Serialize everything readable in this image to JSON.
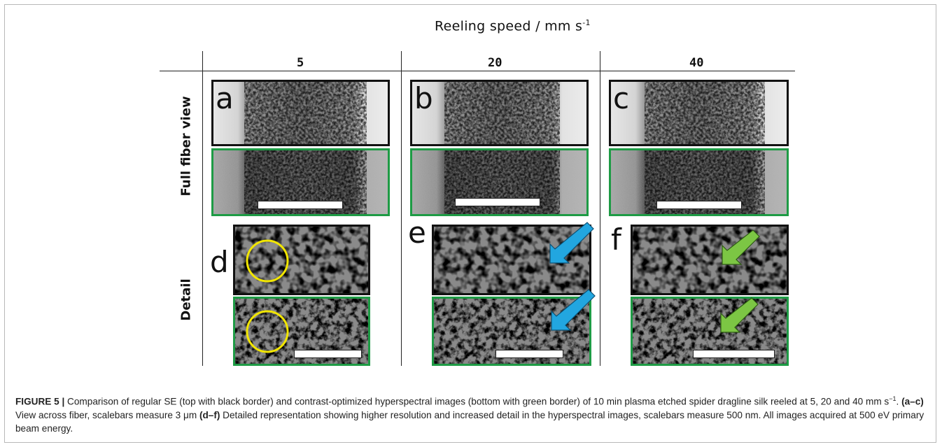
{
  "header": {
    "title": "Reeling speed / mm s",
    "title_sup": "-1"
  },
  "columns": [
    "5",
    "20",
    "40"
  ],
  "rows": [
    "Full fiber view",
    "Detail"
  ],
  "panel_letters": [
    "a",
    "b",
    "c",
    "d",
    "e",
    "f"
  ],
  "colors": {
    "se_border": "#111111",
    "hyperspectral_border": "#1e9b45",
    "circle": "#f2e600",
    "arrow_blue": "#22a6e0",
    "arrow_green": "#7cc644"
  },
  "caption": {
    "figure_label": "FIGURE 5 |",
    "part1": " Comparison of regular SE (top with black border) and contrast-optimized hyperspectral images (bottom with green border) of 10 min plasma etched spider dragline silk reeled at 5, 20 and 40 mm s",
    "sup1": "−1",
    "part2": ". ",
    "bold_ac": "(a–c)",
    "part3": " View across fiber, scalebars measure 3 μm ",
    "bold_df": "(d–f)",
    "part4": " Detailed representation showing higher resolution and increased detail in the hyperspectral images, scalebars measure 500 nm. All images acquired at 500 eV primary beam energy."
  }
}
